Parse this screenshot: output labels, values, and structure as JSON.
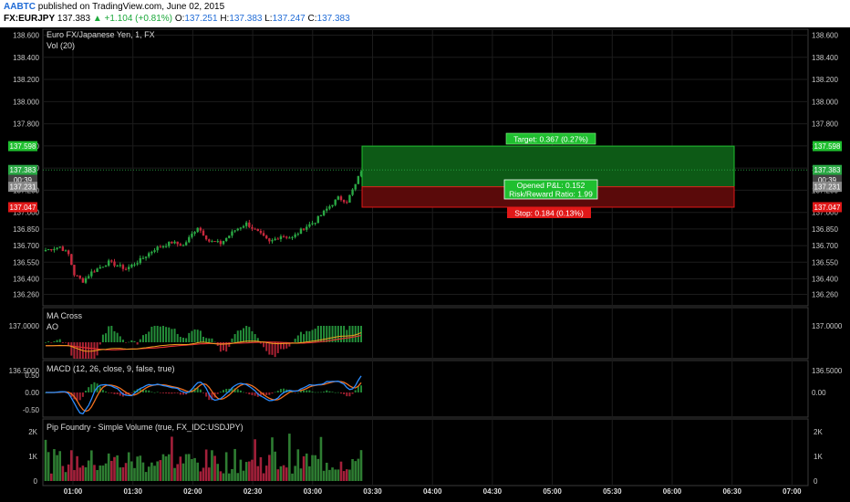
{
  "header": {
    "brand": "AABTC",
    "published": " published on TradingView.com, June 02, 2015",
    "symbol": "FX:EURJPY",
    "last": "137.383",
    "change": "▲ +1.104 (+0.81%)",
    "o_label": "O:",
    "o": "137.251",
    "h_label": "H:",
    "h": "137.383",
    "l_label": "L:",
    "l": "137.247",
    "c_label": "C:",
    "c": "137.383"
  },
  "colors": {
    "bg": "#000000",
    "up": "#2aa844",
    "down": "#c8283c",
    "grid": "#1c1c1c",
    "axis_text": "#c8c8c8",
    "target": "#1fbf2f",
    "stop": "#e01818"
  },
  "chart_data": [
    {
      "type": "candlestick",
      "title": "Euro FX/Japanese Yen, 1, FX",
      "subtitle": "Vol (20)",
      "ylim": [
        136.15,
        138.7
      ],
      "y_ticks": [
        "138.600",
        "138.400",
        "138.200",
        "138.000",
        "137.800",
        "137.600",
        "137.400",
        "137.200",
        "137.000",
        "136.850",
        "136.700",
        "136.550",
        "136.400",
        "136.260"
      ],
      "x_ticks": [
        "01:00",
        "01:30",
        "02:00",
        "02:30",
        "03:00",
        "03:30",
        "04:00",
        "04:30",
        "05:00",
        "05:30",
        "06:00",
        "06:30",
        "07:00"
      ],
      "price_tags_left": [
        {
          "label": "137.598",
          "kind": "target"
        },
        {
          "label": "137.383",
          "kind": "last"
        },
        {
          "label": "00:39",
          "kind": "timer"
        },
        {
          "label": "137.231",
          "kind": "entry"
        },
        {
          "label": "137.047",
          "kind": "stop"
        }
      ],
      "price_tags_right": [
        {
          "label": "137.598",
          "kind": "target"
        },
        {
          "label": "137.383",
          "kind": "last"
        },
        {
          "label": "00:39",
          "kind": "timer"
        },
        {
          "label": "137.231",
          "kind": "entry"
        },
        {
          "label": "137.047",
          "kind": "stop"
        }
      ],
      "closes_keypoints": [
        [
          0,
          136.66
        ],
        [
          5,
          136.69
        ],
        [
          8,
          136.62
        ],
        [
          10,
          136.44
        ],
        [
          13,
          136.38
        ],
        [
          16,
          136.46
        ],
        [
          22,
          136.55
        ],
        [
          28,
          136.49
        ],
        [
          33,
          136.57
        ],
        [
          38,
          136.67
        ],
        [
          44,
          136.73
        ],
        [
          48,
          136.7
        ],
        [
          53,
          136.87
        ],
        [
          57,
          136.74
        ],
        [
          61,
          136.72
        ],
        [
          66,
          136.84
        ],
        [
          70,
          136.9
        ],
        [
          74,
          136.82
        ],
        [
          78,
          136.73
        ],
        [
          82,
          136.79
        ],
        [
          86,
          136.77
        ],
        [
          90,
          136.86
        ],
        [
          94,
          136.92
        ],
        [
          98,
          137.03
        ],
        [
          102,
          137.13
        ],
        [
          105,
          137.1
        ],
        [
          108,
          137.25
        ],
        [
          110,
          137.38
        ]
      ],
      "position": {
        "entry": 137.231,
        "target": 137.598,
        "stop": 137.047,
        "target_label": "Target: 0.367 (0.27%)",
        "pnl_label": "Opened P&L: 0.152",
        "rr_label": "Risk/Reward Ratio: 1.99",
        "stop_label": "Stop: 0.184 (0.13%)"
      }
    },
    {
      "type": "line",
      "title": "MA Cross",
      "subtitle": "AO",
      "y_ticks": [
        "137.0000",
        "136.5000"
      ]
    },
    {
      "type": "line",
      "title": "MACD (12, 26, close, 9, false, true)",
      "y_ticks_left": [
        "0.50",
        "0.00",
        "-0.50"
      ],
      "y_ticks_right": [
        "0.00"
      ]
    },
    {
      "type": "bar",
      "title": "Pip Foundry - Simple Volume (true, FX_IDC:USDJPY)",
      "y_ticks": [
        "2K",
        "1K",
        "0"
      ]
    }
  ]
}
